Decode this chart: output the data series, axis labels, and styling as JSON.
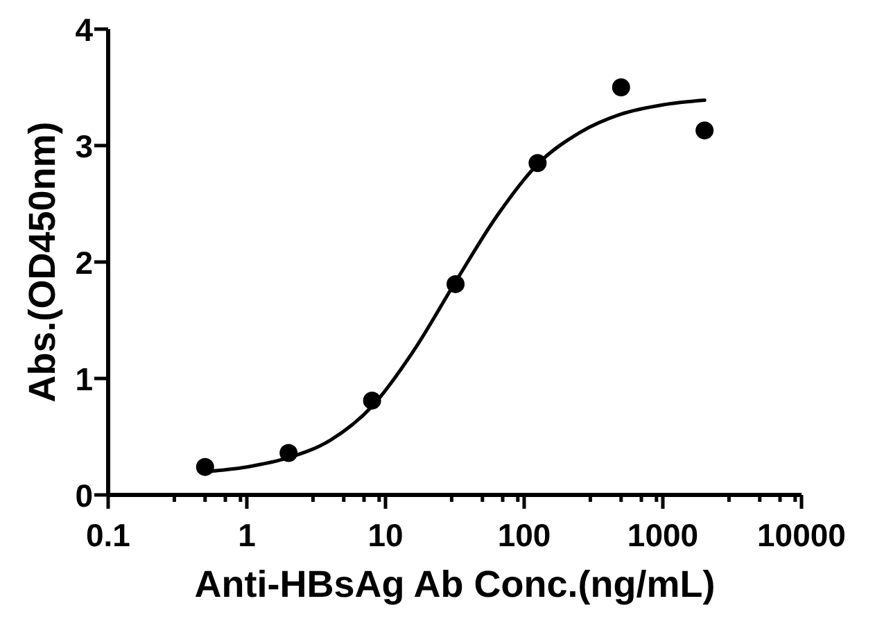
{
  "chart_data": {
    "type": "scatter",
    "xlabel": "Anti-HBsAg Ab Conc.(ng/mL)",
    "ylabel": "Abs.(OD450nm)",
    "log": "x",
    "xlim": [
      0.1,
      10000
    ],
    "xticks": [
      0.1,
      {
        "value": 0.3,
        "label": null
      },
      {
        "value": 0.5,
        "label": null
      },
      {
        "value": 0.7,
        "label": null
      },
      {
        "value": 0.9,
        "label": null
      },
      1,
      {
        "value": 3,
        "label": null
      },
      {
        "value": 5,
        "label": null
      },
      {
        "value": 7,
        "label": null
      },
      {
        "value": 9,
        "label": null
      },
      10,
      {
        "value": 30,
        "label": null
      },
      {
        "value": 50,
        "label": null
      },
      {
        "value": 70,
        "label": null
      },
      {
        "value": 90,
        "label": null
      },
      100,
      {
        "value": 300,
        "label": null
      },
      {
        "value": 500,
        "label": null
      },
      {
        "value": 700,
        "label": null
      },
      {
        "value": 900,
        "label": null
      },
      1000,
      {
        "value": 3000,
        "label": null
      },
      {
        "value": 5000,
        "label": null
      },
      {
        "value": 7000,
        "label": null
      },
      {
        "value": 9000,
        "label": null
      },
      10000
    ],
    "ylim": [
      0,
      4
    ],
    "yticks": [
      0,
      1,
      2,
      3,
      4
    ],
    "series": [
      {
        "color": "#000000",
        "marker": "circle",
        "x": [
          0.5,
          2,
          8,
          32,
          125,
          500,
          2000
        ],
        "values": [
          0.24,
          0.36,
          0.81,
          1.81,
          2.85,
          3.5,
          3.13
        ]
      },
      {
        "type": "line",
        "color": "#000000",
        "x": [
          0.5,
          1,
          2,
          4,
          8,
          16,
          32,
          64,
          125,
          250,
          500,
          1000,
          2000
        ],
        "values": [
          0.2,
          0.24,
          0.32,
          0.47,
          0.76,
          1.24,
          1.83,
          2.4,
          2.84,
          3.11,
          3.27,
          3.35,
          3.39
        ]
      }
    ]
  }
}
